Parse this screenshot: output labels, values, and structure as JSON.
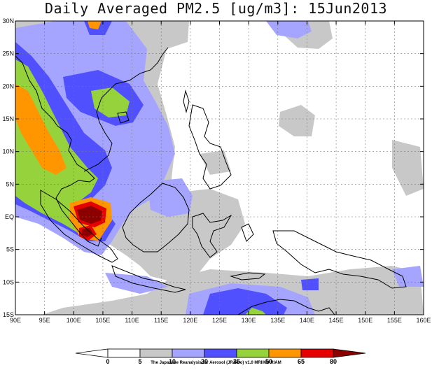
{
  "title": "Daily Averaged PM2.5 [ug/m3]: 15Jun2013",
  "credit": "The Japanese Reanalysis for Aerosol (JRAero) v1.0 MRI/KU RIAM",
  "map": {
    "lon_range": [
      90,
      160
    ],
    "lat_range": [
      -15,
      30
    ],
    "x_tick_labels": [
      "90E",
      "95E",
      "100E",
      "105E",
      "110E",
      "115E",
      "120E",
      "125E",
      "130E",
      "135E",
      "140E",
      "145E",
      "150E",
      "155E",
      "160E"
    ],
    "y_tick_labels": [
      "30N",
      "25N",
      "20N",
      "15N",
      "10N",
      "5N",
      "EQ",
      "5S",
      "10S",
      "15S"
    ],
    "grid": true
  },
  "colorbar": {
    "levels": [
      "0",
      "5",
      "10",
      "20",
      "35",
      "50",
      "65",
      "80"
    ],
    "colors": [
      "#ffffff",
      "#ffffff",
      "#c8c8c8",
      "#a5a5ff",
      "#5050ff",
      "#96d23c",
      "#ff9600",
      "#e60000",
      "#8c0000"
    ]
  }
}
